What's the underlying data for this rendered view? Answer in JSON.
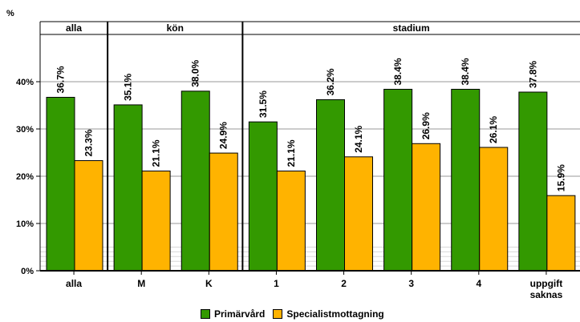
{
  "chart_data": {
    "type": "bar",
    "ylabel": "%",
    "ylim": [
      0,
      50
    ],
    "yticks": [
      "0%",
      "10%",
      "20%",
      "30%",
      "40%"
    ],
    "grid": true,
    "legend_position": "bottom",
    "groups": [
      {
        "label": "alla",
        "categories": 1
      },
      {
        "label": "kön",
        "categories": 2
      },
      {
        "label": "stadium",
        "categories": 5
      }
    ],
    "categories": [
      "alla",
      "M",
      "K",
      "1",
      "2",
      "3",
      "4",
      "uppgift saknas"
    ],
    "series": [
      {
        "name": "Primärvård",
        "color": "#339900",
        "values": [
          36.7,
          35.1,
          38.0,
          31.5,
          36.2,
          38.4,
          38.4,
          37.8
        ],
        "labels": [
          "36.7%",
          "35.1%",
          "38.0%",
          "31.5%",
          "36.2%",
          "38.4%",
          "38.4%",
          "37.8%"
        ]
      },
      {
        "name": "Specialistmottagning",
        "color": "#FFB300",
        "values": [
          23.3,
          21.1,
          24.9,
          21.1,
          24.1,
          26.9,
          26.1,
          15.9
        ],
        "labels": [
          "23.3%",
          "21.1%",
          "24.9%",
          "21.1%",
          "24.1%",
          "26.9%",
          "26.1%",
          "15.9%"
        ]
      }
    ]
  }
}
